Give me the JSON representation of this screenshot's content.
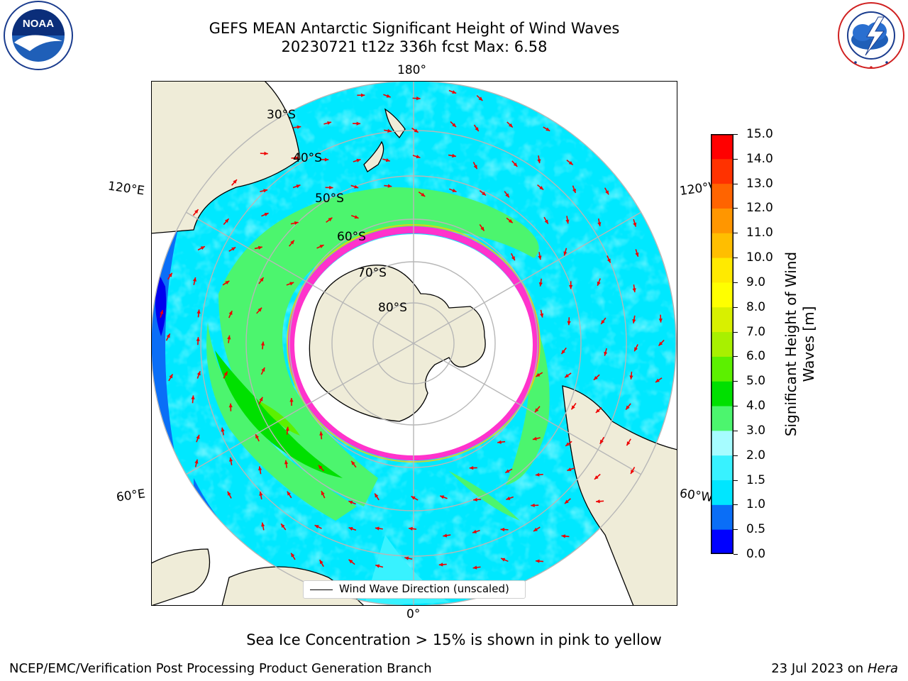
{
  "header": {
    "title_line1": "GEFS MEAN Antarctic Significant Height of Wind Waves",
    "title_line2": "20230721 t12z 336h fcst   Max: 6.58"
  },
  "logos": {
    "noaa": {
      "text": "NOAA",
      "ring_text": "NATIONAL OCEANIC AND ATMOSPHERIC ADMINISTRATION",
      "bottom_text": "U.S. DEPARTMENT OF COMMERCE"
    },
    "nws": {
      "ring_text": "NATIONAL WEATHER SERVICE"
    }
  },
  "map": {
    "projection": "south-polar-stereographic",
    "longitude_labels": {
      "top": "180°",
      "bottom": "0°",
      "upper_left": "120°E",
      "upper_right": "120°W",
      "lower_left": "60°E",
      "lower_right": "60°W"
    },
    "latitude_labels": [
      "30°S",
      "40°S",
      "50°S",
      "60°S",
      "70°S",
      "80°S"
    ],
    "legend_label": "Wind Wave Direction (unscaled)",
    "vector_color": "#ee0000",
    "land_color": "#efecd8",
    "graticule_color": "#b7b7b7"
  },
  "colorbar": {
    "label": "Significant Height of Wind Waves [m]",
    "label_line1": "Significant Height of Wind",
    "label_line2": "Waves [m]",
    "ticks": [
      "15.0",
      "14.0",
      "13.0",
      "12.0",
      "11.0",
      "10.0",
      "9.0",
      "8.0",
      "7.0",
      "6.0",
      "5.0",
      "4.0",
      "3.0",
      "2.0",
      "1.5",
      "1.0",
      "0.5",
      "0.0"
    ],
    "levels": [
      0.0,
      0.5,
      1.0,
      1.5,
      2.0,
      3.0,
      4.0,
      5.0,
      6.0,
      7.0,
      8.0,
      9.0,
      10.0,
      11.0,
      12.0,
      13.0,
      14.0,
      15.0
    ],
    "colors": [
      "#0000ff",
      "#0a6ef7",
      "#00e6ff",
      "#38f2ff",
      "#a6fcff",
      "#4cf56e",
      "#00e000",
      "#5cf000",
      "#a8f000",
      "#d8f000",
      "#ffff00",
      "#ffea00",
      "#ffbe00",
      "#ff9600",
      "#ff6400",
      "#ff3200",
      "#ff0000"
    ]
  },
  "caption": "Sea Ice Concentration > 15% is shown in pink to yellow",
  "footer": {
    "left": "NCEP/EMC/Verification Post Processing Product Generation Branch",
    "right_prefix": "23 Jul 2023 on ",
    "right_machine": "Hera"
  }
}
